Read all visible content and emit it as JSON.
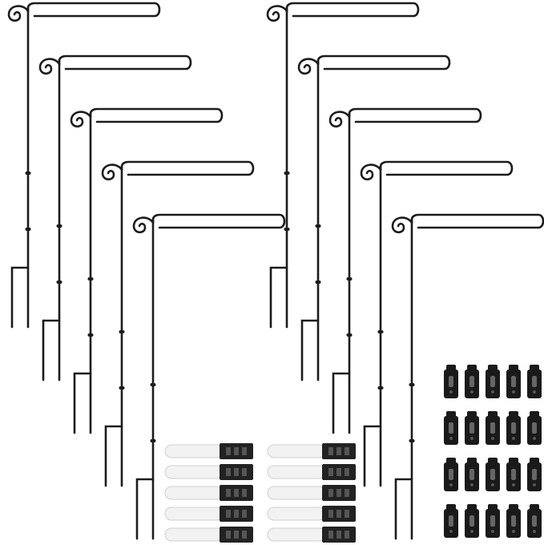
{
  "colors": {
    "background": "#ffffff",
    "metal": "#1c1c1c",
    "clip_body": "#f2f2f2",
    "clip_outline": "#d0d0d0",
    "clip_head": "#222222",
    "stopper": "#1a1a1a"
  },
  "icons": {
    "stand": "garden-flag-stand",
    "clip": "anti-wind-clip",
    "stopper": "rubber-stopper"
  }
}
